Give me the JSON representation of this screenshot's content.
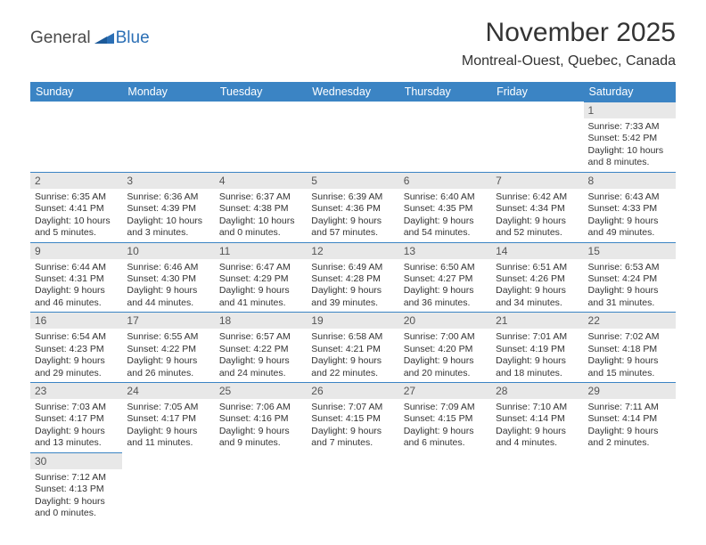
{
  "logo": {
    "word1": "General",
    "word2": "Blue",
    "triangle_color": "#2b6fb5"
  },
  "title": "November 2025",
  "location": "Montreal-Ouest, Quebec, Canada",
  "header_bg": "#3b84c4",
  "header_text_color": "#ffffff",
  "daynum_bg": "#e8e8e8",
  "divider_color": "#3b84c4",
  "text_color": "#333333",
  "day_headers": [
    "Sunday",
    "Monday",
    "Tuesday",
    "Wednesday",
    "Thursday",
    "Friday",
    "Saturday"
  ],
  "weeks": [
    [
      null,
      null,
      null,
      null,
      null,
      null,
      {
        "n": "1",
        "sr": "Sunrise: 7:33 AM",
        "ss": "Sunset: 5:42 PM",
        "dl": "Daylight: 10 hours and 8 minutes."
      }
    ],
    [
      {
        "n": "2",
        "sr": "Sunrise: 6:35 AM",
        "ss": "Sunset: 4:41 PM",
        "dl": "Daylight: 10 hours and 5 minutes."
      },
      {
        "n": "3",
        "sr": "Sunrise: 6:36 AM",
        "ss": "Sunset: 4:39 PM",
        "dl": "Daylight: 10 hours and 3 minutes."
      },
      {
        "n": "4",
        "sr": "Sunrise: 6:37 AM",
        "ss": "Sunset: 4:38 PM",
        "dl": "Daylight: 10 hours and 0 minutes."
      },
      {
        "n": "5",
        "sr": "Sunrise: 6:39 AM",
        "ss": "Sunset: 4:36 PM",
        "dl": "Daylight: 9 hours and 57 minutes."
      },
      {
        "n": "6",
        "sr": "Sunrise: 6:40 AM",
        "ss": "Sunset: 4:35 PM",
        "dl": "Daylight: 9 hours and 54 minutes."
      },
      {
        "n": "7",
        "sr": "Sunrise: 6:42 AM",
        "ss": "Sunset: 4:34 PM",
        "dl": "Daylight: 9 hours and 52 minutes."
      },
      {
        "n": "8",
        "sr": "Sunrise: 6:43 AM",
        "ss": "Sunset: 4:33 PM",
        "dl": "Daylight: 9 hours and 49 minutes."
      }
    ],
    [
      {
        "n": "9",
        "sr": "Sunrise: 6:44 AM",
        "ss": "Sunset: 4:31 PM",
        "dl": "Daylight: 9 hours and 46 minutes."
      },
      {
        "n": "10",
        "sr": "Sunrise: 6:46 AM",
        "ss": "Sunset: 4:30 PM",
        "dl": "Daylight: 9 hours and 44 minutes."
      },
      {
        "n": "11",
        "sr": "Sunrise: 6:47 AM",
        "ss": "Sunset: 4:29 PM",
        "dl": "Daylight: 9 hours and 41 minutes."
      },
      {
        "n": "12",
        "sr": "Sunrise: 6:49 AM",
        "ss": "Sunset: 4:28 PM",
        "dl": "Daylight: 9 hours and 39 minutes."
      },
      {
        "n": "13",
        "sr": "Sunrise: 6:50 AM",
        "ss": "Sunset: 4:27 PM",
        "dl": "Daylight: 9 hours and 36 minutes."
      },
      {
        "n": "14",
        "sr": "Sunrise: 6:51 AM",
        "ss": "Sunset: 4:26 PM",
        "dl": "Daylight: 9 hours and 34 minutes."
      },
      {
        "n": "15",
        "sr": "Sunrise: 6:53 AM",
        "ss": "Sunset: 4:24 PM",
        "dl": "Daylight: 9 hours and 31 minutes."
      }
    ],
    [
      {
        "n": "16",
        "sr": "Sunrise: 6:54 AM",
        "ss": "Sunset: 4:23 PM",
        "dl": "Daylight: 9 hours and 29 minutes."
      },
      {
        "n": "17",
        "sr": "Sunrise: 6:55 AM",
        "ss": "Sunset: 4:22 PM",
        "dl": "Daylight: 9 hours and 26 minutes."
      },
      {
        "n": "18",
        "sr": "Sunrise: 6:57 AM",
        "ss": "Sunset: 4:22 PM",
        "dl": "Daylight: 9 hours and 24 minutes."
      },
      {
        "n": "19",
        "sr": "Sunrise: 6:58 AM",
        "ss": "Sunset: 4:21 PM",
        "dl": "Daylight: 9 hours and 22 minutes."
      },
      {
        "n": "20",
        "sr": "Sunrise: 7:00 AM",
        "ss": "Sunset: 4:20 PM",
        "dl": "Daylight: 9 hours and 20 minutes."
      },
      {
        "n": "21",
        "sr": "Sunrise: 7:01 AM",
        "ss": "Sunset: 4:19 PM",
        "dl": "Daylight: 9 hours and 18 minutes."
      },
      {
        "n": "22",
        "sr": "Sunrise: 7:02 AM",
        "ss": "Sunset: 4:18 PM",
        "dl": "Daylight: 9 hours and 15 minutes."
      }
    ],
    [
      {
        "n": "23",
        "sr": "Sunrise: 7:03 AM",
        "ss": "Sunset: 4:17 PM",
        "dl": "Daylight: 9 hours and 13 minutes."
      },
      {
        "n": "24",
        "sr": "Sunrise: 7:05 AM",
        "ss": "Sunset: 4:17 PM",
        "dl": "Daylight: 9 hours and 11 minutes."
      },
      {
        "n": "25",
        "sr": "Sunrise: 7:06 AM",
        "ss": "Sunset: 4:16 PM",
        "dl": "Daylight: 9 hours and 9 minutes."
      },
      {
        "n": "26",
        "sr": "Sunrise: 7:07 AM",
        "ss": "Sunset: 4:15 PM",
        "dl": "Daylight: 9 hours and 7 minutes."
      },
      {
        "n": "27",
        "sr": "Sunrise: 7:09 AM",
        "ss": "Sunset: 4:15 PM",
        "dl": "Daylight: 9 hours and 6 minutes."
      },
      {
        "n": "28",
        "sr": "Sunrise: 7:10 AM",
        "ss": "Sunset: 4:14 PM",
        "dl": "Daylight: 9 hours and 4 minutes."
      },
      {
        "n": "29",
        "sr": "Sunrise: 7:11 AM",
        "ss": "Sunset: 4:14 PM",
        "dl": "Daylight: 9 hours and 2 minutes."
      }
    ],
    [
      {
        "n": "30",
        "sr": "Sunrise: 7:12 AM",
        "ss": "Sunset: 4:13 PM",
        "dl": "Daylight: 9 hours and 0 minutes."
      },
      null,
      null,
      null,
      null,
      null,
      null
    ]
  ]
}
